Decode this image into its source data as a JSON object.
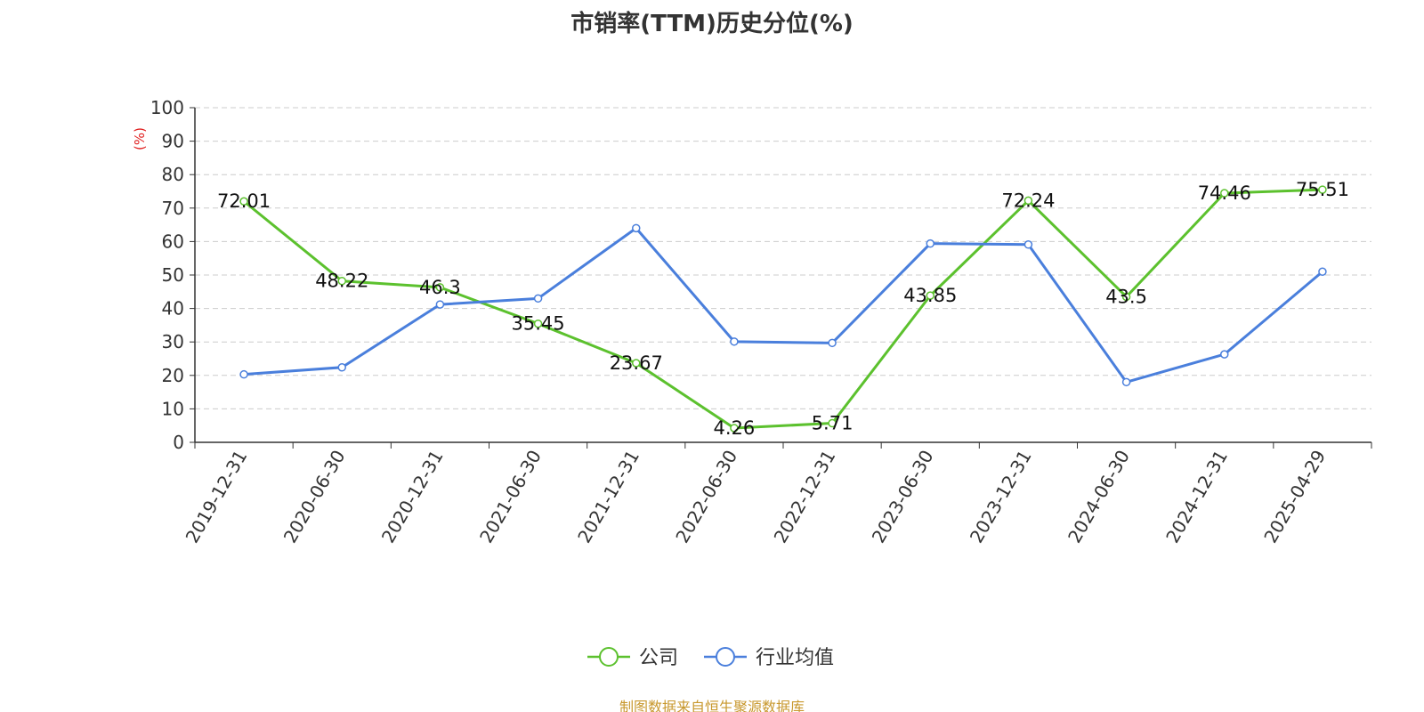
{
  "chart_data": {
    "type": "line",
    "title": "市销率(TTM)历史分位(%)",
    "ylabel": "(%)",
    "xlabel": "",
    "ylim": [
      0,
      100
    ],
    "yticks": [
      0,
      10,
      20,
      30,
      40,
      50,
      60,
      70,
      80,
      90,
      100
    ],
    "categories": [
      "2019-12-31",
      "2020-06-30",
      "2020-12-31",
      "2021-06-30",
      "2021-12-31",
      "2022-06-30",
      "2022-12-31",
      "2023-06-30",
      "2023-12-31",
      "2024-06-30",
      "2024-12-31",
      "2025-04-29"
    ],
    "grid": true,
    "legend_position": "bottom-center",
    "series": [
      {
        "name": "公司",
        "color": "#5cc12e",
        "values": [
          72.01,
          48.22,
          46.3,
          35.45,
          23.67,
          4.26,
          5.71,
          43.85,
          72.24,
          43.5,
          74.46,
          75.51
        ],
        "labels": [
          "72.01",
          "48.22",
          "46.3",
          "35.45",
          "23.67",
          "4.26",
          "5.71",
          "43.85",
          "72.24",
          "43.5",
          "74.46",
          "75.51"
        ]
      },
      {
        "name": "行业均值",
        "color": "#4a7fdc",
        "values": [
          20.3,
          22.4,
          41.2,
          43.0,
          64.0,
          30.1,
          29.7,
          59.4,
          59.1,
          18.0,
          26.3,
          51.0
        ]
      }
    ],
    "source": "制图数据来自恒生聚源数据库"
  }
}
